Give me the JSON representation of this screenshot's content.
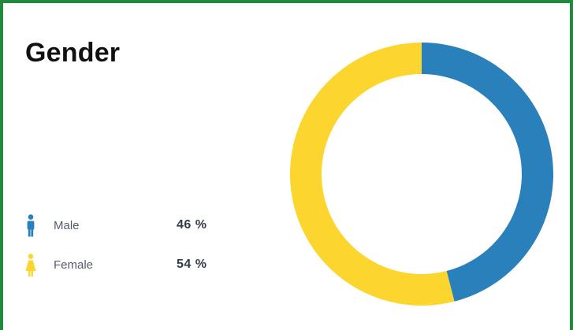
{
  "title": "Gender",
  "legend": [
    {
      "icon": "male-person-icon",
      "label": "Male",
      "value_text": "46 %",
      "color": "#2980ba"
    },
    {
      "icon": "female-person-icon",
      "label": "Female",
      "value_text": "54 %",
      "color": "#fdd52f"
    }
  ],
  "chart_data": {
    "type": "pie",
    "variant": "donut",
    "title": "Gender",
    "categories": [
      "Male",
      "Female"
    ],
    "values": [
      46,
      54
    ],
    "unit": "%",
    "colors": [
      "#2980ba",
      "#fdd52f"
    ],
    "start_angle": "top",
    "direction": "clockwise",
    "legend": "left"
  }
}
